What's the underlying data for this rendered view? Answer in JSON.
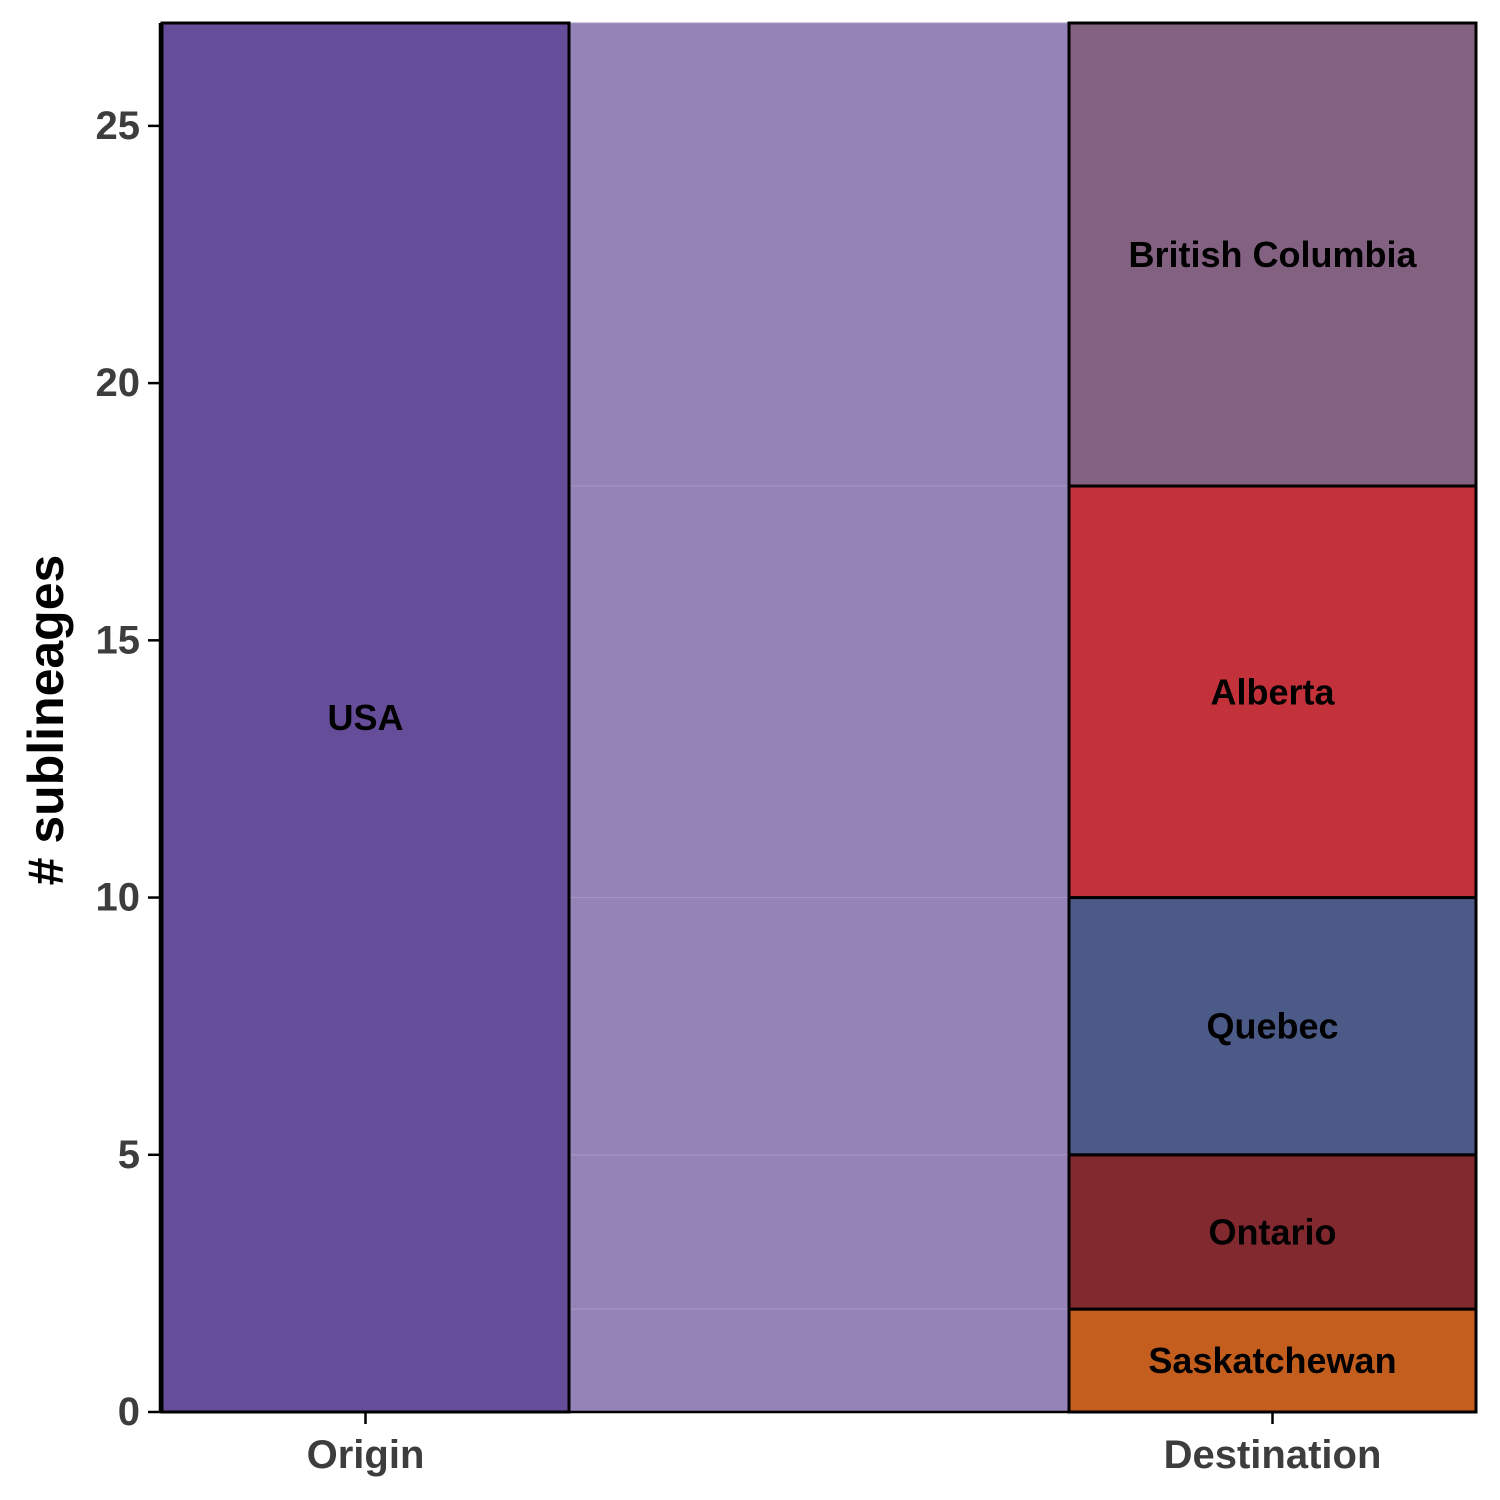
{
  "chart_data": {
    "type": "alluvial",
    "ylabel": "# sublineages",
    "ylim": [
      0,
      27
    ],
    "yticks": [
      0,
      5,
      10,
      15,
      20,
      25
    ],
    "axes": [
      "Origin",
      "Destination"
    ],
    "strata": {
      "Origin": [
        {
          "label": "USA",
          "value": 27,
          "color": "#654d99"
        }
      ],
      "Destination": [
        {
          "label": "Saskatchewan",
          "value": 2,
          "color": "#c35e1e"
        },
        {
          "label": "Ontario",
          "value": 3,
          "color": "#81292e"
        },
        {
          "label": "Quebec",
          "value": 5,
          "color": "#4b5a87"
        },
        {
          "label": "Alberta",
          "value": 8,
          "color": "#c3323b"
        },
        {
          "label": "British Columbia",
          "value": 9,
          "color": "#836181"
        }
      ]
    },
    "flows": [
      {
        "from": "USA",
        "to": "Saskatchewan",
        "value": 2
      },
      {
        "from": "USA",
        "to": "Ontario",
        "value": 3
      },
      {
        "from": "USA",
        "to": "Quebec",
        "value": 5
      },
      {
        "from": "USA",
        "to": "Alberta",
        "value": 8
      },
      {
        "from": "USA",
        "to": "British Columbia",
        "value": 9
      }
    ],
    "flow_color": "#9583b7"
  }
}
